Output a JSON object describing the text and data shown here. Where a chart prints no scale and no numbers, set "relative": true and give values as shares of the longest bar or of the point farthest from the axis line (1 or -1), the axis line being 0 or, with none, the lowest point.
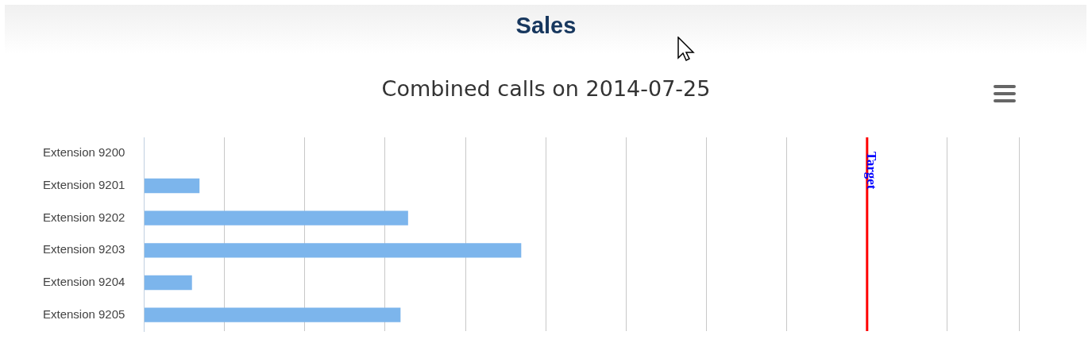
{
  "chart_data": {
    "type": "bar",
    "orientation": "horizontal",
    "relative": true,
    "title": "Sales",
    "subtitle": "Combined calls on 2014-07-25",
    "categories": [
      "Extension 9200",
      "Extension 9201",
      "Extension 9202",
      "Extension 9203",
      "Extension 9204",
      "Extension 9205"
    ],
    "values": [
      0,
      0.147,
      0.7,
      1,
      0.127,
      0.68
    ],
    "color": "#7cb5ec",
    "ref_lines": [
      {
        "axis": "x",
        "value": 1.917,
        "label": "Target",
        "color": "#ff0000"
      }
    ],
    "grid": "x",
    "legend": false
  }
}
